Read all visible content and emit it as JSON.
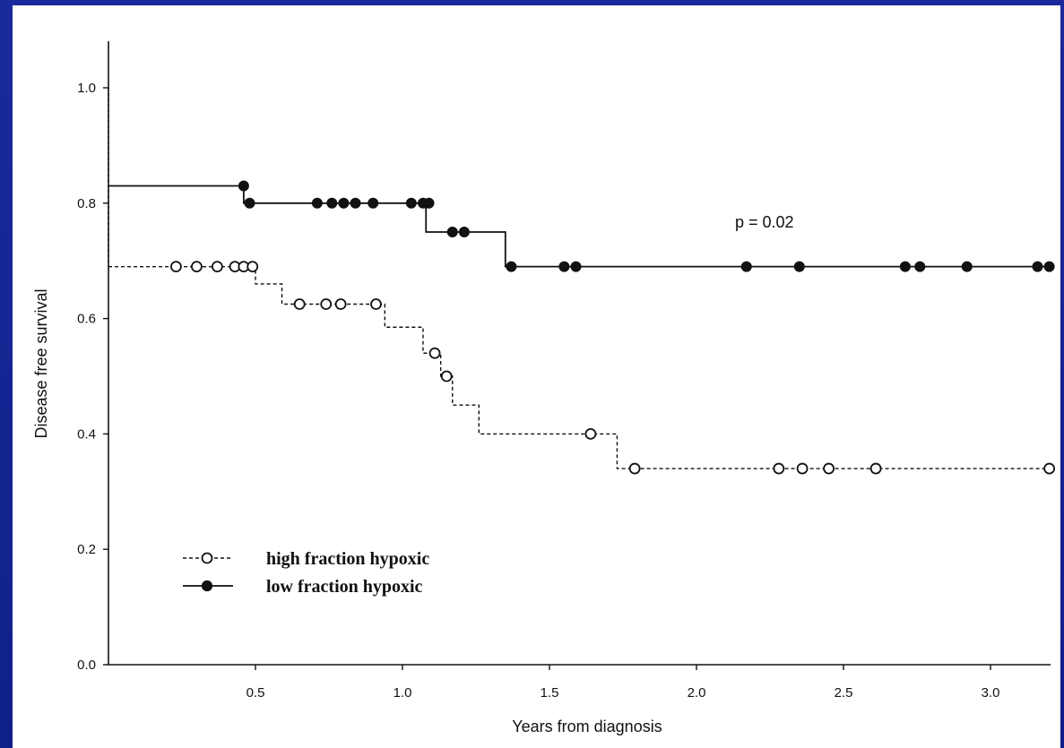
{
  "chart_data": {
    "type": "line",
    "title": "",
    "xlabel": "Years from diagnosis",
    "ylabel": "Disease free survival",
    "xlim": [
      0,
      3.25
    ],
    "ylim": [
      0,
      1.08
    ],
    "x_ticks": [
      "0.5",
      "1.0",
      "1.5",
      "2.0",
      "2.5",
      "3.0"
    ],
    "x_tick_values": [
      0.5,
      1.0,
      1.5,
      2.0,
      2.5,
      3.0
    ],
    "y_ticks": [
      "0.0",
      "0.2",
      "0.4",
      "0.6",
      "0.8",
      "1.0"
    ],
    "y_tick_values": [
      0.0,
      0.2,
      0.4,
      0.6,
      0.8,
      1.0
    ],
    "grid": false,
    "legend_position": "bottom-left",
    "annotation": "p = 0.02",
    "series": [
      {
        "name": "high fraction hypoxic",
        "style": "dashed-step",
        "marker": "open-circle",
        "step_x": [
          0,
          0.5,
          0.59,
          0.94,
          1.07,
          1.13,
          1.17,
          1.26,
          1.73,
          3.2
        ],
        "step_y": [
          0.69,
          0.66,
          0.625,
          0.585,
          0.54,
          0.5,
          0.45,
          0.4,
          0.34,
          0.34
        ],
        "censored_x": [
          0.23,
          0.3,
          0.37,
          0.43,
          0.46,
          0.49,
          0.65,
          0.74,
          0.79,
          0.91,
          1.11,
          1.15,
          1.64,
          1.79,
          2.28,
          2.36,
          2.45,
          2.61,
          3.2
        ],
        "censored_y": [
          0.69,
          0.69,
          0.69,
          0.69,
          0.69,
          0.69,
          0.625,
          0.625,
          0.625,
          0.625,
          0.54,
          0.5,
          0.4,
          0.34,
          0.34,
          0.34,
          0.34,
          0.34,
          0.34
        ]
      },
      {
        "name": "low fraction hypoxic",
        "style": "solid-step",
        "marker": "filled-circle",
        "step_x": [
          0,
          0.46,
          1.08,
          1.35,
          3.2
        ],
        "step_y": [
          0.83,
          0.8,
          0.75,
          0.69,
          0.69
        ],
        "censored_x": [
          0.46,
          0.48,
          0.71,
          0.76,
          0.8,
          0.84,
          0.9,
          1.03,
          1.07,
          1.09,
          1.17,
          1.21,
          1.37,
          1.55,
          1.59,
          2.17,
          2.35,
          2.71,
          2.76,
          2.92,
          3.16,
          3.2
        ],
        "censored_y": [
          0.83,
          0.8,
          0.8,
          0.8,
          0.8,
          0.8,
          0.8,
          0.8,
          0.8,
          0.8,
          0.75,
          0.75,
          0.69,
          0.69,
          0.69,
          0.69,
          0.69,
          0.69,
          0.69,
          0.69,
          0.69,
          0.69
        ]
      }
    ]
  },
  "colors": {
    "background": "#1a2a9a",
    "plot_bg": "#ffffff",
    "ink": "#111111"
  }
}
